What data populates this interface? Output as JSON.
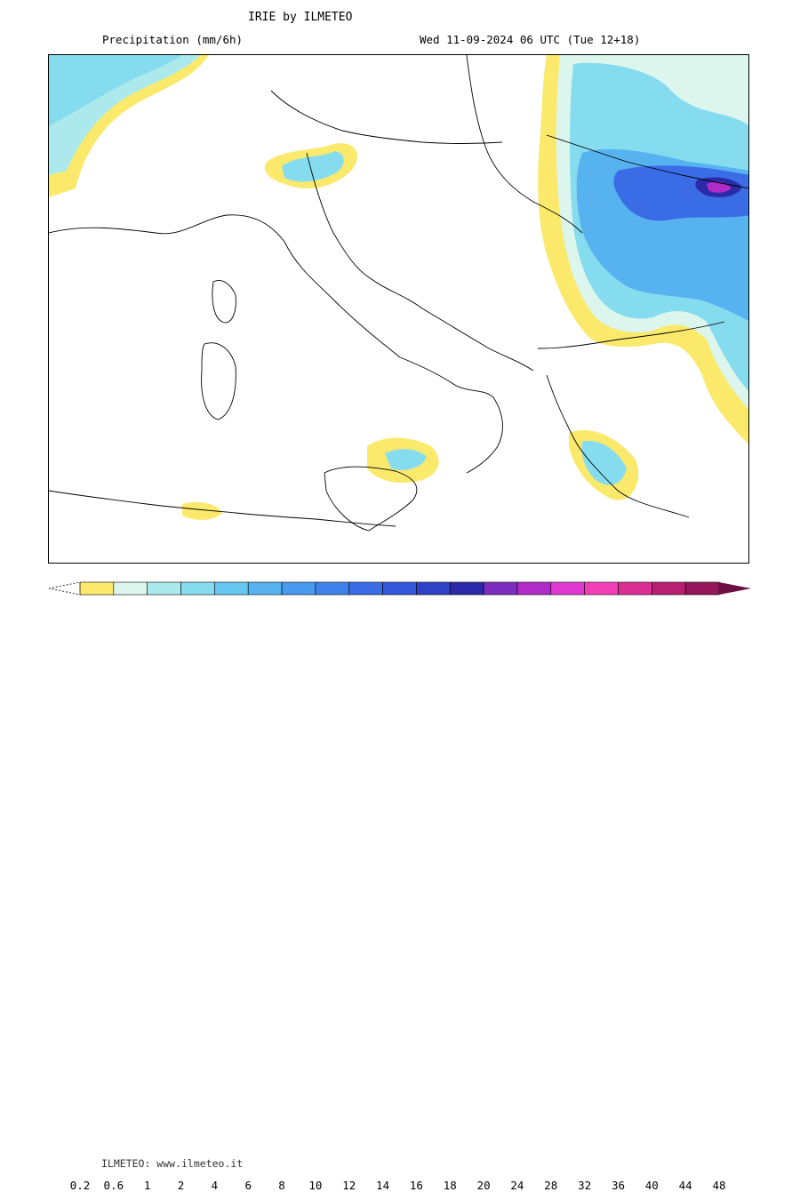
{
  "header": {
    "title": "IRIE by ILMETEO",
    "subtitle": "Precipitation (mm/6h)",
    "datetime": "Wed 11-09-2024 06 UTC (Tue 12+18)"
  },
  "legend": {
    "watermark": "ILMETEO: www.ilmeteo.it",
    "ticks": [
      "0.2",
      "0.6",
      "1",
      "2",
      "4",
      "6",
      "8",
      "10",
      "12",
      "14",
      "16",
      "18",
      "20",
      "24",
      "28",
      "32",
      "36",
      "40",
      "44",
      "48"
    ],
    "colors": [
      "#fbe96c",
      "#dcf6ee",
      "#ace9ec",
      "#86dcef",
      "#66c7f0",
      "#57b2f0",
      "#4a9af0",
      "#3f82eb",
      "#3a6ce6",
      "#3557d9",
      "#2f41c7",
      "#2b2aa8",
      "#7d2cc0",
      "#b02cc8",
      "#e03ad3",
      "#f23fb8",
      "#dc2f95",
      "#b81f73",
      "#95165a",
      "#6e1043"
    ]
  }
}
